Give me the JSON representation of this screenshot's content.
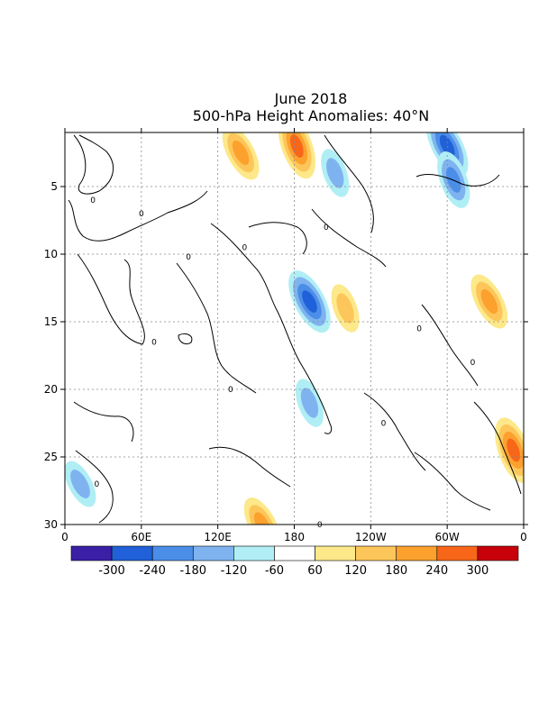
{
  "title_line1": "June 2018",
  "title_line2": "500-hPa Height Anomalies: 40°N",
  "chart_data": {
    "type": "heatmap",
    "title": "June 2018",
    "subtitle": "500-hPa Height Anomalies: 40°N",
    "xlabel": "",
    "ylabel": "",
    "x_ticks": [
      "0",
      "60E",
      "120E",
      "180",
      "120W",
      "60W",
      "0"
    ],
    "x_tick_values": [
      0,
      60,
      120,
      180,
      240,
      300,
      360
    ],
    "y_ticks": [
      "5",
      "10",
      "15",
      "20",
      "25",
      "30"
    ],
    "y_tick_values": [
      5,
      10,
      15,
      20,
      25,
      30
    ],
    "xlim": [
      0,
      360
    ],
    "ylim": [
      1,
      30
    ],
    "y_axis": "day of month (increasing downward)",
    "grid": true,
    "contour_label": "0",
    "colorbar": {
      "levels": [
        "-300",
        "-240",
        "-180",
        "-120",
        "-60",
        "60",
        "120",
        "180",
        "240",
        "300"
      ],
      "colors": [
        "#3b1fa6",
        "#2060d8",
        "#4a8ee8",
        "#7fb3f0",
        "#b0eef5",
        "#ffffff",
        "#fde88a",
        "#fdc65a",
        "#fca12e",
        "#f8661a",
        "#c8000a"
      ]
    },
    "features": [
      {
        "kind": "negative",
        "lon": 192,
        "day": 13.5,
        "peak": -240,
        "note": "strongest negative anomaly near dateline"
      },
      {
        "kind": "negative",
        "lon": 212,
        "day": 4.0,
        "peak": -120
      },
      {
        "kind": "negative",
        "lon": 300,
        "day": 2.0,
        "peak": -240
      },
      {
        "kind": "negative",
        "lon": 305,
        "day": 4.5,
        "peak": -180
      },
      {
        "kind": "negative",
        "lon": 12,
        "day": 27.0,
        "peak": -120
      },
      {
        "kind": "negative",
        "lon": 192,
        "day": 21.0,
        "peak": -120
      },
      {
        "kind": "positive",
        "lon": 138,
        "day": 2.5,
        "peak": 180
      },
      {
        "kind": "positive",
        "lon": 182,
        "day": 2.0,
        "peak": 240
      },
      {
        "kind": "positive",
        "lon": 333,
        "day": 13.5,
        "peak": 180
      },
      {
        "kind": "positive",
        "lon": 352,
        "day": 24.5,
        "peak": 240
      },
      {
        "kind": "positive",
        "lon": 155,
        "day": 30.0,
        "peak": 180
      },
      {
        "kind": "positive",
        "lon": 220,
        "day": 14.0,
        "peak": 120
      }
    ]
  }
}
